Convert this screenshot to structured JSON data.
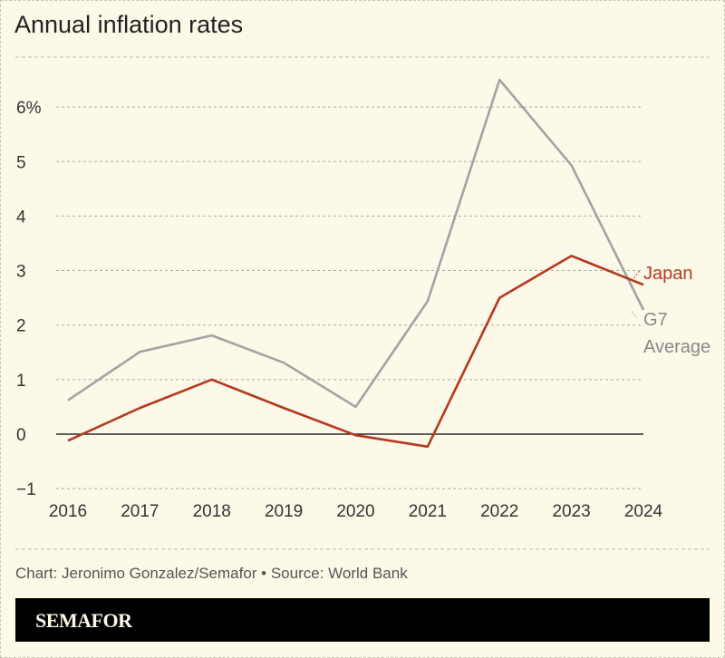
{
  "title": "Annual inflation rates",
  "credit": "Chart: Jeronimo Gonzalez/Semafor • Source: World Bank",
  "logo": "SEMAFOR",
  "chart_data": {
    "type": "line",
    "title": "Annual inflation rates",
    "x": [
      2016,
      2017,
      2018,
      2019,
      2020,
      2021,
      2022,
      2023,
      2024
    ],
    "ylim": [
      -1,
      6.6
    ],
    "yticks": [
      -1,
      0,
      1,
      2,
      3,
      4,
      5,
      6
    ],
    "ytick_labels": [
      "−1",
      "0",
      "1",
      "2",
      "3",
      "4",
      "5",
      "6%"
    ],
    "grid": true,
    "series": [
      {
        "name": "G7 Average",
        "color": "#a3a3a3",
        "values": [
          0.62,
          1.51,
          1.81,
          1.31,
          0.5,
          2.44,
          6.5,
          4.93,
          2.28
        ]
      },
      {
        "name": "Japan",
        "color": "#b5391f",
        "values": [
          -0.12,
          0.48,
          1.0,
          0.48,
          -0.02,
          -0.23,
          2.5,
          3.27,
          2.74
        ]
      }
    ],
    "labels": {
      "japan": "Japan",
      "g7_line1": "G7",
      "g7_line2": "Average"
    }
  }
}
